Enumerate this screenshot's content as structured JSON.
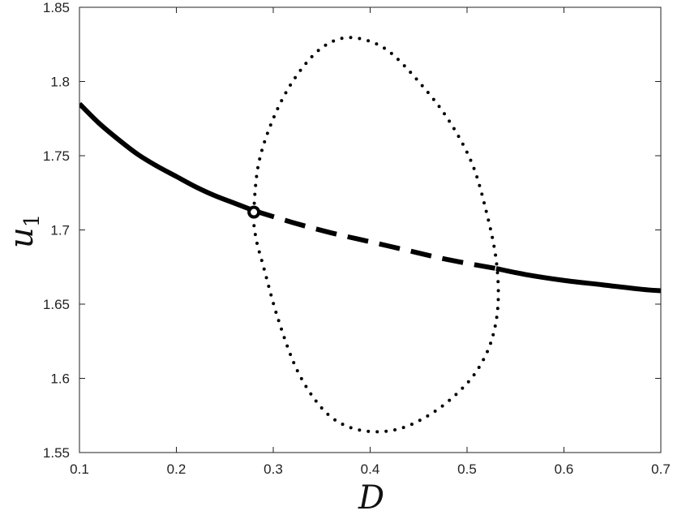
{
  "chart_data": {
    "type": "line",
    "title": "",
    "xlabel": "D",
    "ylabel": {
      "main": "u",
      "subscript": "1"
    },
    "xlim": [
      0.1,
      0.7
    ],
    "ylim": [
      1.55,
      1.85
    ],
    "xticks": [
      0.1,
      0.2,
      0.3,
      0.4,
      0.5,
      0.6,
      0.7
    ],
    "xtick_labels": [
      "0.1",
      "0.2",
      "0.3",
      "0.4",
      "0.5",
      "0.6",
      "0.7"
    ],
    "yticks": [
      1.55,
      1.6,
      1.65,
      1.7,
      1.75,
      1.8,
      1.85
    ],
    "ytick_labels": [
      "1.55",
      "1.6",
      "1.65",
      "1.7",
      "1.75",
      "1.8",
      "1.85"
    ],
    "grid": false,
    "legend": "none",
    "colors": {
      "line": "#000000",
      "axes": "#222222"
    },
    "series": [
      {
        "style": "solid",
        "x": [
          0.1,
          0.12,
          0.14,
          0.16,
          0.18,
          0.2,
          0.22,
          0.24,
          0.26,
          0.28
        ],
        "y": [
          1.785,
          1.772,
          1.761,
          1.751,
          1.743,
          1.736,
          1.729,
          1.723,
          1.718,
          1.713
        ]
      },
      {
        "style": "dashed",
        "x": [
          0.28,
          0.32,
          0.36,
          0.4,
          0.44,
          0.48,
          0.53
        ],
        "y": [
          1.713,
          1.705,
          1.698,
          1.692,
          1.686,
          1.68,
          1.674
        ]
      },
      {
        "style": "solid",
        "x": [
          0.53,
          0.56,
          0.6,
          0.64,
          0.68,
          0.7
        ],
        "y": [
          1.674,
          1.67,
          1.666,
          1.663,
          1.66,
          1.659
        ]
      },
      {
        "style": "dotted",
        "shape": "closed-loop",
        "x": [
          0.28,
          0.285,
          0.3,
          0.32,
          0.345,
          0.37,
          0.395,
          0.42,
          0.45,
          0.48,
          0.505,
          0.52,
          0.53,
          0.532,
          0.525,
          0.51,
          0.49,
          0.465,
          0.435,
          0.405,
          0.375,
          0.35,
          0.325,
          0.305,
          0.29,
          0.282
        ],
        "y": [
          1.712,
          1.745,
          1.775,
          1.8,
          1.82,
          1.829,
          1.828,
          1.82,
          1.8,
          1.775,
          1.745,
          1.712,
          1.68,
          1.65,
          1.625,
          1.605,
          1.59,
          1.577,
          1.567,
          1.564,
          1.568,
          1.58,
          1.605,
          1.64,
          1.675,
          1.695
        ]
      }
    ],
    "markers": [
      {
        "shape": "open-circle",
        "x": 0.28,
        "y": 1.712
      }
    ]
  }
}
